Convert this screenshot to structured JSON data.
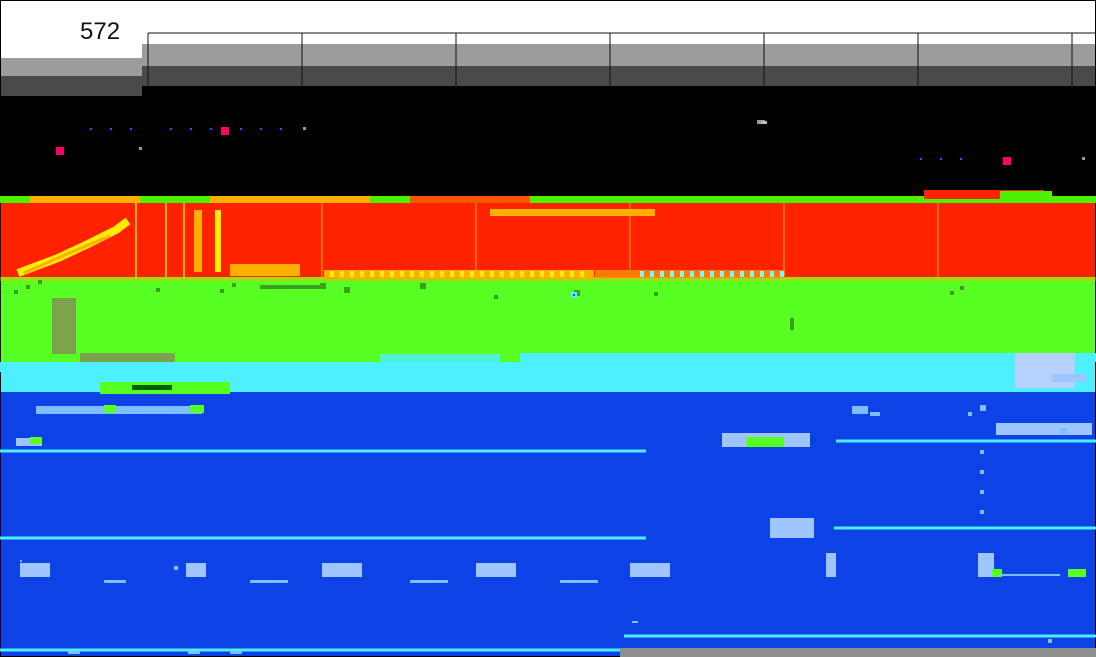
{
  "ruler": {
    "value": "572"
  },
  "palette": {
    "white": "#ffffff",
    "black": "#000000",
    "gray_light": "#9c9c9c",
    "gray_dark": "#4a4a4a",
    "red": "#ff2200",
    "orange": "#ffb000",
    "yellow": "#ffee00",
    "green": "#58ff22",
    "cyan": "#4cf0ff",
    "blue": "#0c42e6",
    "blue_dark": "#0a33b8"
  },
  "icons": {
    "artifact_cluster": "pixel-noise-icon"
  }
}
